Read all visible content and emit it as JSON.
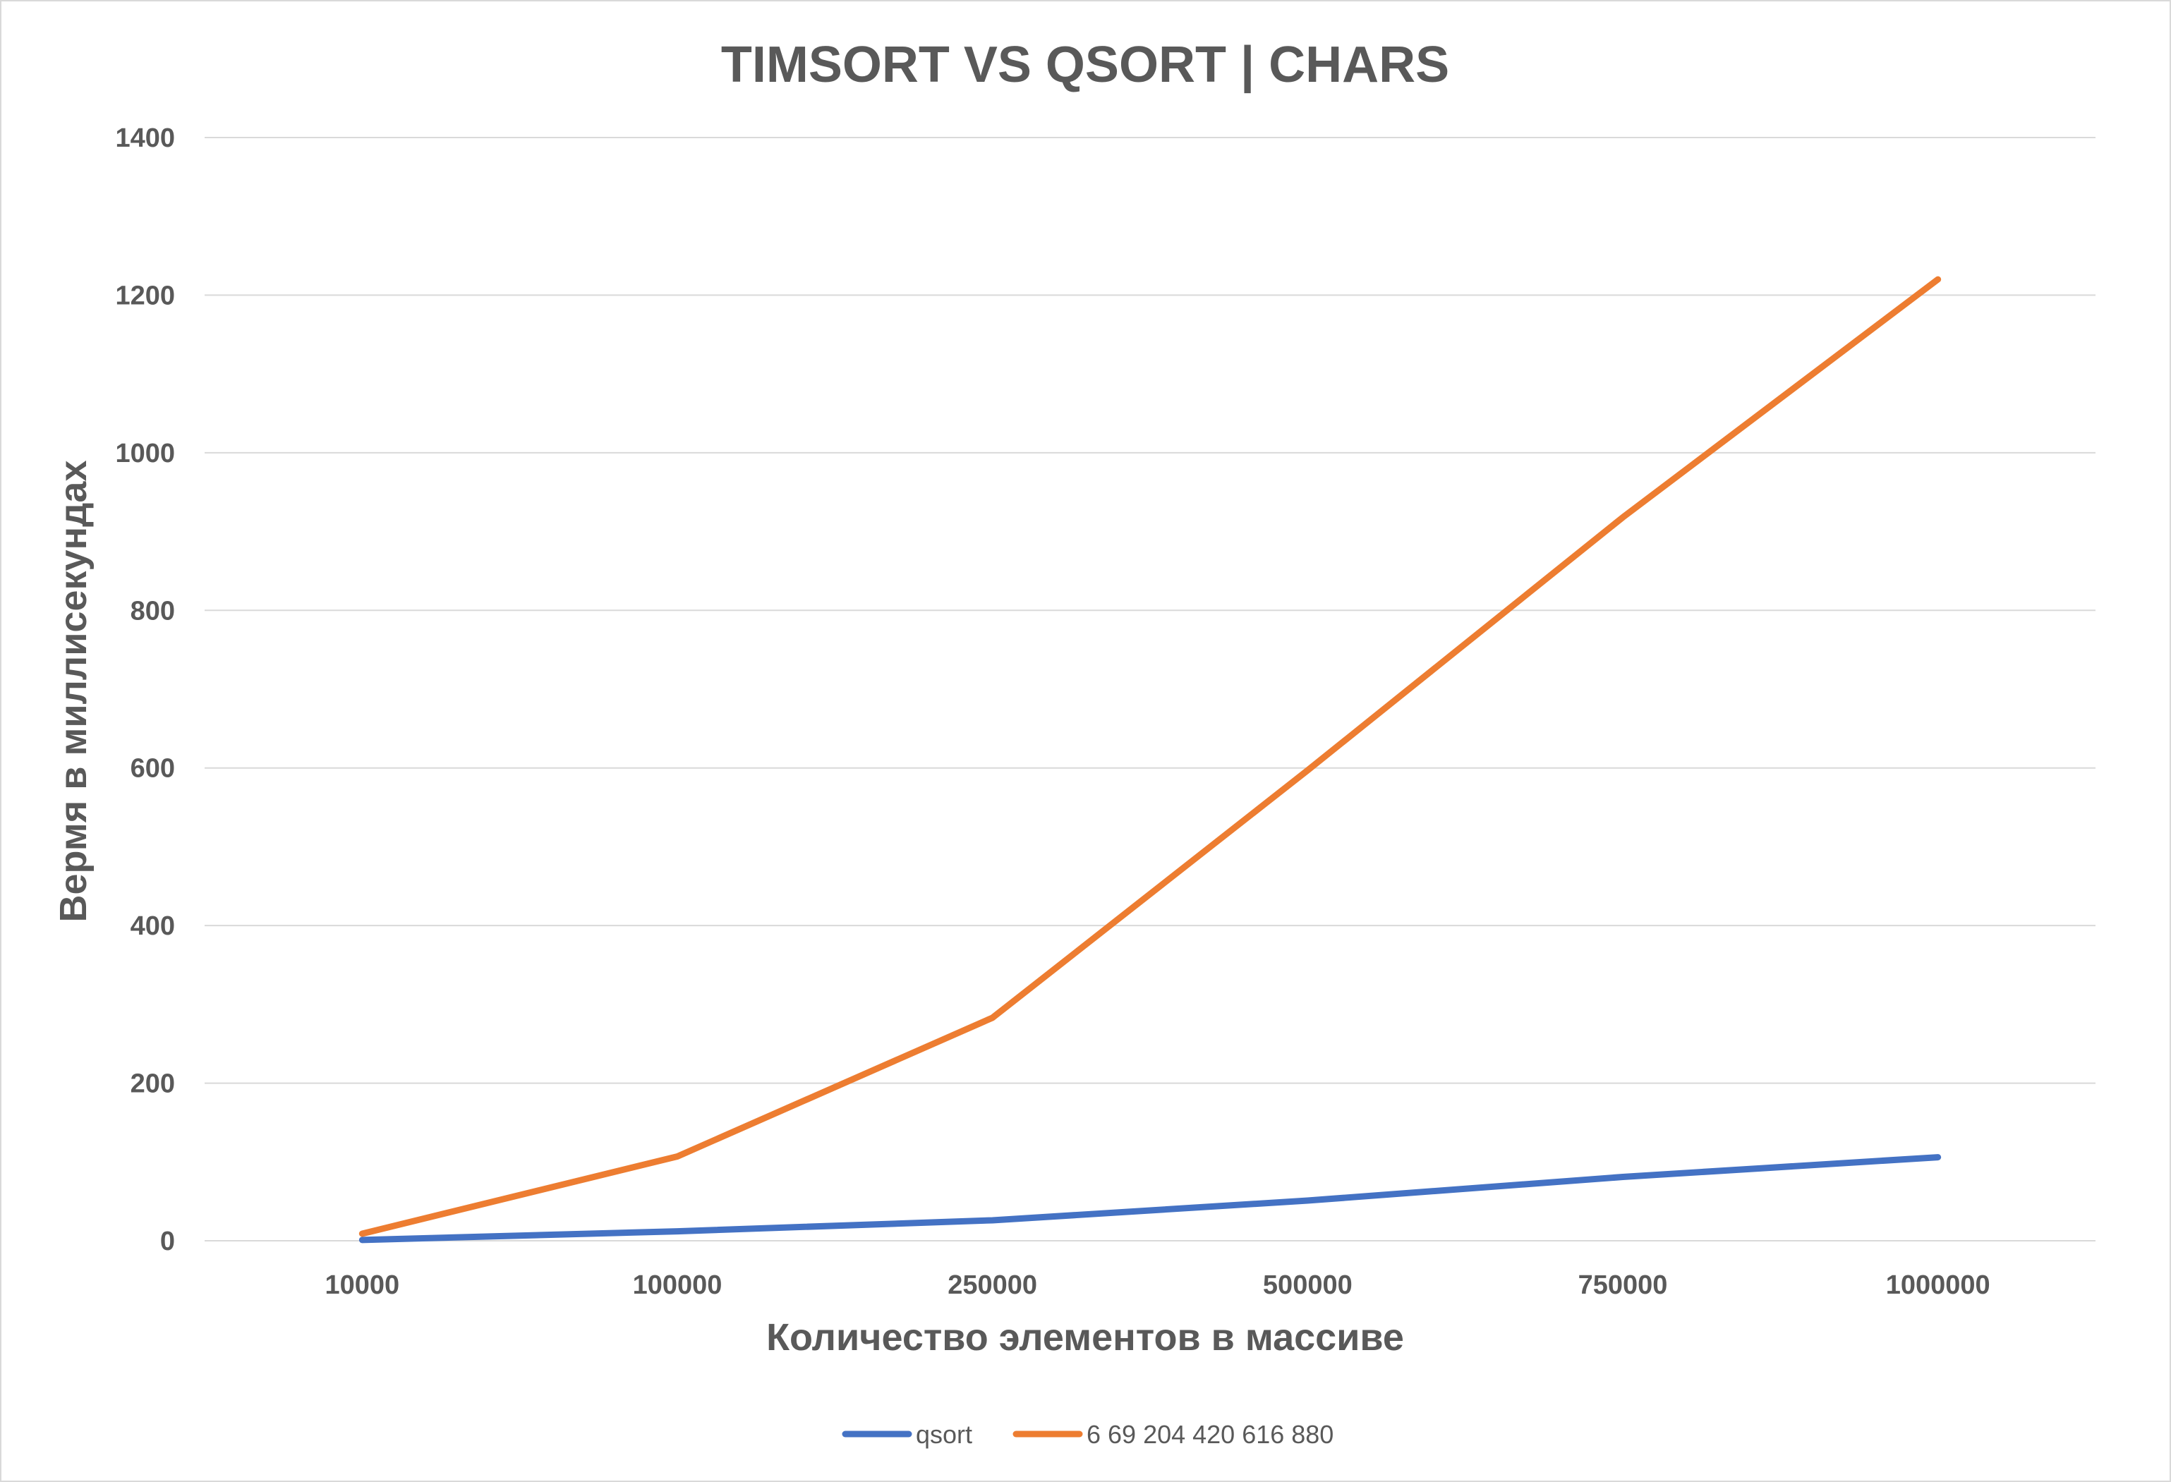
{
  "chart_data": {
    "type": "line",
    "title": "TIMSORT VS QSORT | CHARS",
    "xlabel": "Количество элементов в массиве",
    "ylabel": "Вермя в миллисекундах",
    "categories": [
      "10000",
      "100000",
      "250000",
      "500000",
      "750000",
      "1000000"
    ],
    "ylim": [
      0,
      1400
    ],
    "yticks": [
      0,
      200,
      400,
      600,
      800,
      1000,
      1200,
      1400
    ],
    "grid": true,
    "legend_position": "bottom",
    "series": [
      {
        "name": "qsort",
        "color": "#4472c4",
        "values": [
          1,
          12,
          26,
          51,
          81,
          106
        ]
      },
      {
        "name": "6 69 204 420 616 880",
        "color": "#ed7d31",
        "values": [
          9,
          107,
          283,
          597,
          918,
          1220
        ]
      }
    ]
  }
}
